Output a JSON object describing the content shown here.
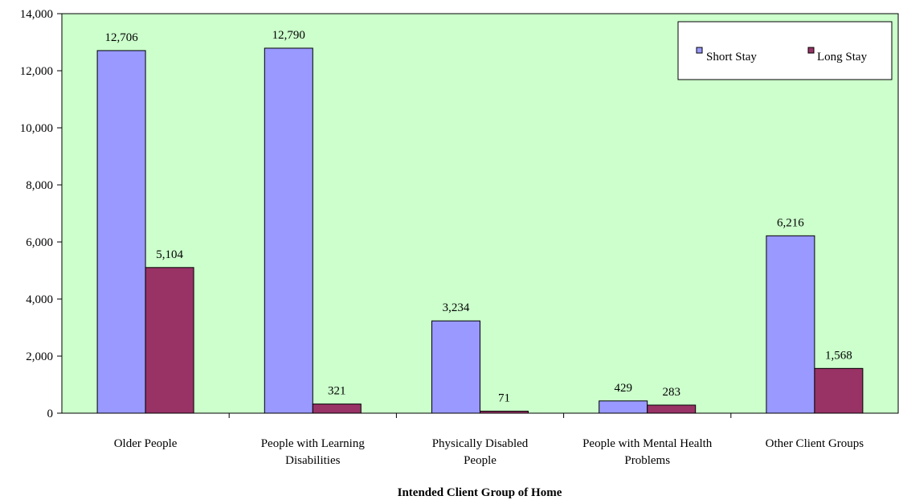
{
  "chart_data": {
    "type": "bar",
    "categories": [
      [
        "Older People"
      ],
      [
        "People with Learning",
        "Disabilities"
      ],
      [
        "Physically Disabled",
        "People"
      ],
      [
        "People with Mental Health",
        "Problems"
      ],
      [
        "Other Client Groups"
      ]
    ],
    "series": [
      {
        "name": "Short Stay",
        "color": "#9999ff",
        "values": [
          12706,
          12790,
          3234,
          429,
          6216
        ]
      },
      {
        "name": "Long Stay",
        "color": "#993366",
        "values": [
          5104,
          321,
          71,
          283,
          1568
        ]
      }
    ],
    "value_labels": [
      [
        "12,706",
        "12,790",
        "3,234",
        "429",
        "6,216"
      ],
      [
        "5,104",
        "321",
        "71",
        "283",
        "1,568"
      ]
    ],
    "xlabel": "Intended Client Group of Home",
    "ylabel": "",
    "ylim": [
      0,
      14000
    ],
    "yticks": [
      0,
      2000,
      4000,
      6000,
      8000,
      10000,
      12000,
      14000
    ],
    "ytick_labels": [
      "0",
      "2,000",
      "4,000",
      "6,000",
      "8,000",
      "10,000",
      "12,000",
      "14,000"
    ],
    "plot_background": "#ccffcc",
    "grid": false,
    "legend_position": "top-right"
  }
}
